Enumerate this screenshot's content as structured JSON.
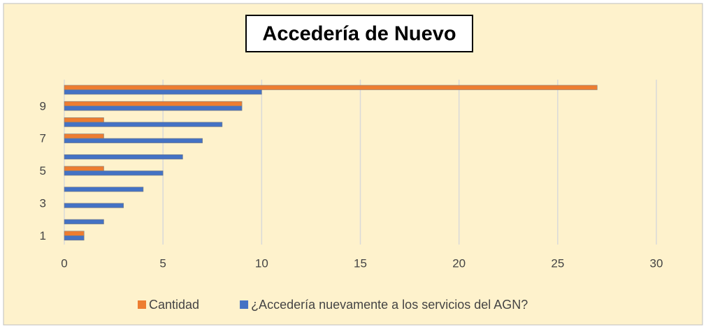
{
  "chart_data": {
    "type": "barh",
    "title": "Accedería de Nuevo",
    "categories": [
      "1",
      null,
      "3",
      null,
      "5",
      null,
      "7",
      null,
      "9",
      null
    ],
    "series": [
      {
        "name": "Cantidad",
        "color": "#ed7d31",
        "values": [
          1,
          0,
          0,
          0,
          2,
          0,
          2,
          2,
          9,
          27
        ]
      },
      {
        "name": "¿Accedería nuevamente a los servicios del AGN?",
        "color": "#4472c4",
        "values": [
          1,
          2,
          3,
          4,
          5,
          6,
          7,
          8,
          9,
          10
        ]
      }
    ],
    "xlim": [
      0,
      30
    ],
    "xticks": [
      0,
      5,
      10,
      15,
      20,
      25,
      30
    ],
    "grid": true,
    "legend": "bottom"
  }
}
